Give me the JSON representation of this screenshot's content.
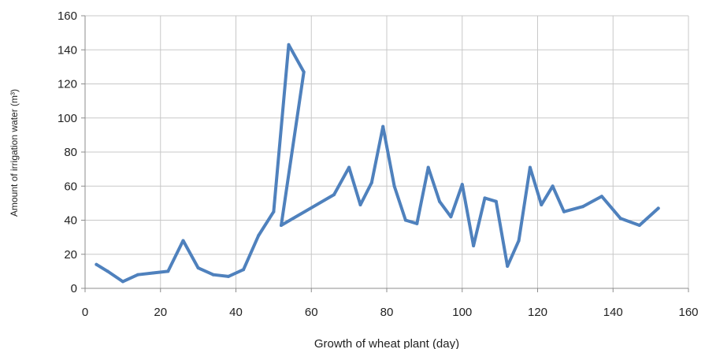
{
  "chart_data": {
    "type": "line",
    "title": "",
    "xlabel": "Growth of wheat plant (day)",
    "ylabel": "Amount of irrigation water (m³)",
    "xlim": [
      0,
      160
    ],
    "ylim": [
      0,
      160
    ],
    "xticks": [
      0,
      20,
      40,
      60,
      80,
      100,
      120,
      140,
      160
    ],
    "yticks": [
      0,
      20,
      40,
      60,
      80,
      100,
      120,
      140,
      160
    ],
    "grid": "vertical-and-horizontal",
    "legend": "none",
    "series": [
      {
        "color": "#4f81bd",
        "x": [
          3,
          6,
          10,
          14,
          18,
          22,
          26,
          30,
          34,
          38,
          42,
          46,
          50,
          54,
          58,
          52,
          66,
          70,
          73,
          76,
          79,
          82,
          85,
          88,
          91,
          94,
          97,
          100,
          103,
          106,
          109,
          112,
          115,
          118,
          121,
          124,
          127,
          132,
          137,
          142,
          147,
          152
        ],
        "y": [
          14,
          10,
          4,
          8,
          9,
          10,
          28,
          12,
          8,
          7,
          11,
          31,
          45,
          143,
          127,
          37,
          55,
          71,
          49,
          62,
          95,
          60,
          40,
          38,
          71,
          51,
          42,
          61,
          25,
          53,
          51,
          13,
          28,
          71,
          49,
          60,
          45,
          48,
          54,
          41,
          37,
          47
        ]
      }
    ]
  }
}
